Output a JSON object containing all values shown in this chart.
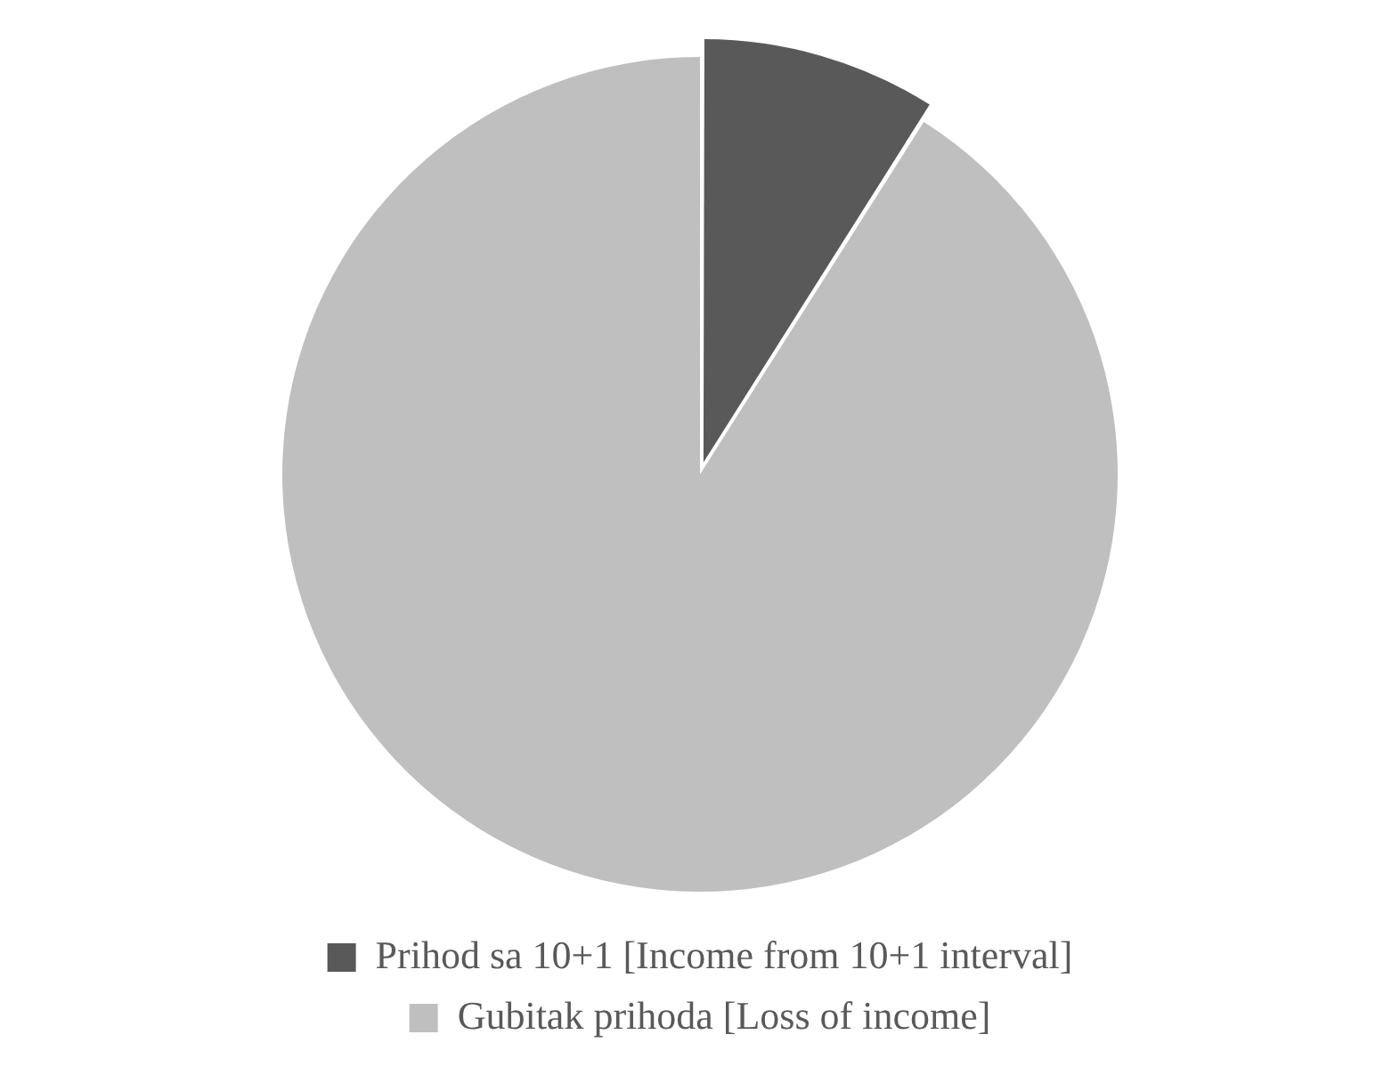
{
  "chart_data": {
    "type": "pie",
    "categories": [
      "Prihod sa 10+1 [Income from 10+1 interval]",
      "Gubitak prihoda [Loss of income]"
    ],
    "values": [
      9,
      91
    ],
    "colors": [
      "#595959",
      "#bfbfbf"
    ],
    "legend": "bottom"
  }
}
